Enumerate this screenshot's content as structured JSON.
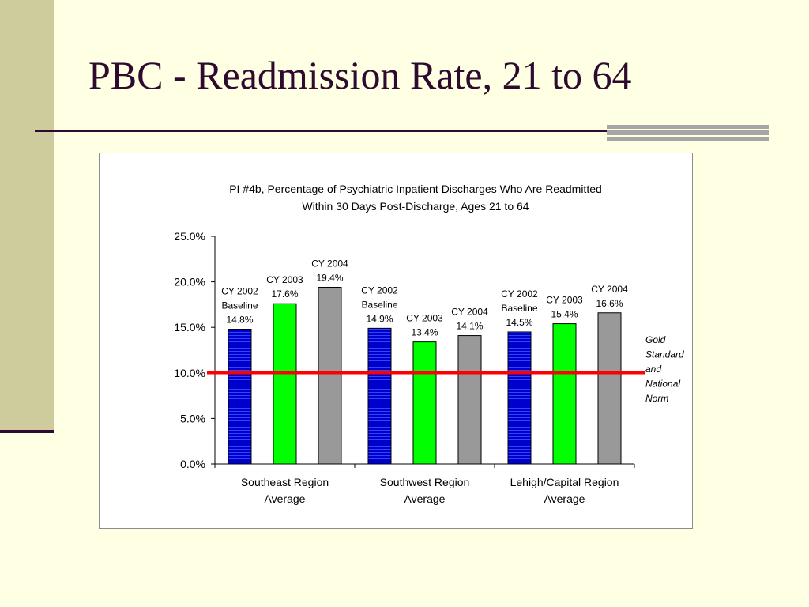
{
  "slide": {
    "title": "PBC - Readmission Rate, 21 to 64"
  },
  "chart_data": {
    "type": "bar",
    "title": "PI #4b, Percentage of Psychiatric Inpatient Discharges Who Are Readmitted",
    "subtitle": "Within 30 Days Post-Discharge, Ages 21 to 64",
    "xlabel": "",
    "ylabel": "",
    "ylim": [
      0,
      25
    ],
    "yticks": [
      "0.0%",
      "5.0%",
      "10.0%",
      "15.0%",
      "20.0%",
      "25.0%"
    ],
    "ytick_values": [
      0,
      5,
      10,
      15,
      20,
      25
    ],
    "categories": [
      [
        "Southeast Region",
        "Average"
      ],
      [
        "Southwest Region",
        "Average"
      ],
      [
        "Lehigh/Capital Region",
        "Average"
      ]
    ],
    "series": [
      {
        "name": "CY 2002 Baseline",
        "color": "#0000CC",
        "pattern": "horizontal-stripes",
        "values": [
          14.8,
          14.9,
          14.5
        ],
        "labels": [
          [
            "CY 2002",
            "Baseline",
            "14.8%"
          ],
          [
            "CY 2002",
            "Baseline",
            "14.9%"
          ],
          [
            "CY 2002",
            "Baseline",
            "14.5%"
          ]
        ]
      },
      {
        "name": "CY 2003",
        "color": "#00FF00",
        "values": [
          17.6,
          13.4,
          15.4
        ],
        "labels": [
          [
            "CY 2003",
            "17.6%"
          ],
          [
            "CY 2003",
            "13.4%"
          ],
          [
            "CY 2003",
            "15.4%"
          ]
        ]
      },
      {
        "name": "CY 2004",
        "color": "#999999",
        "values": [
          19.4,
          14.1,
          16.6
        ],
        "labels": [
          [
            "CY 2004",
            "19.4%"
          ],
          [
            "CY 2004",
            "14.1%"
          ],
          [
            "CY 2004",
            "16.6%"
          ]
        ]
      }
    ],
    "reference_line": {
      "value": 10,
      "color": "#FF0000",
      "label": [
        "Gold",
        "Standard",
        "and",
        "National",
        "Norm"
      ]
    },
    "grid": false,
    "legend": "none"
  }
}
